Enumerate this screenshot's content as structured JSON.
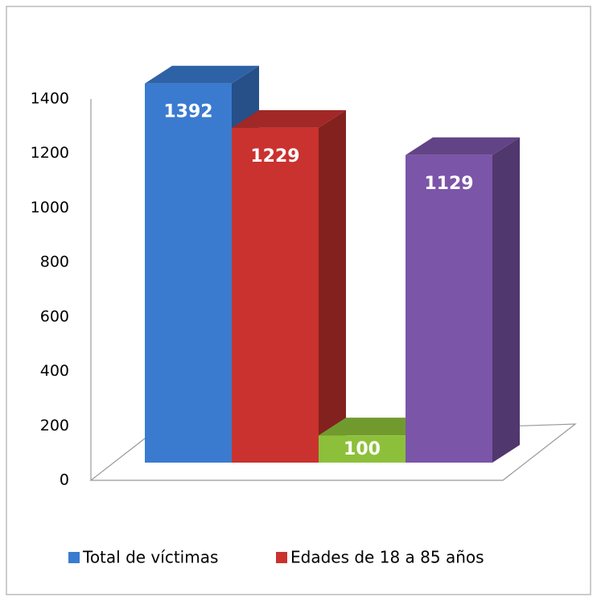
{
  "chart_data": {
    "type": "bar",
    "categories": [
      null,
      null,
      null,
      null
    ],
    "values": [
      1392,
      1229,
      100,
      1129
    ],
    "colors": [
      "#3a7bd0",
      "#c9322f",
      "#8dc03a",
      "#7b55a8"
    ],
    "legend": [
      {
        "name": "Total de víctimas",
        "color": "#3a7bd0"
      },
      {
        "name": "Edades de 18 a 85 años",
        "color": "#c9322f"
      }
    ],
    "ylim": [
      0,
      1400
    ],
    "yticks": [
      0,
      200,
      400,
      600,
      800,
      1000,
      1200,
      1400
    ]
  }
}
